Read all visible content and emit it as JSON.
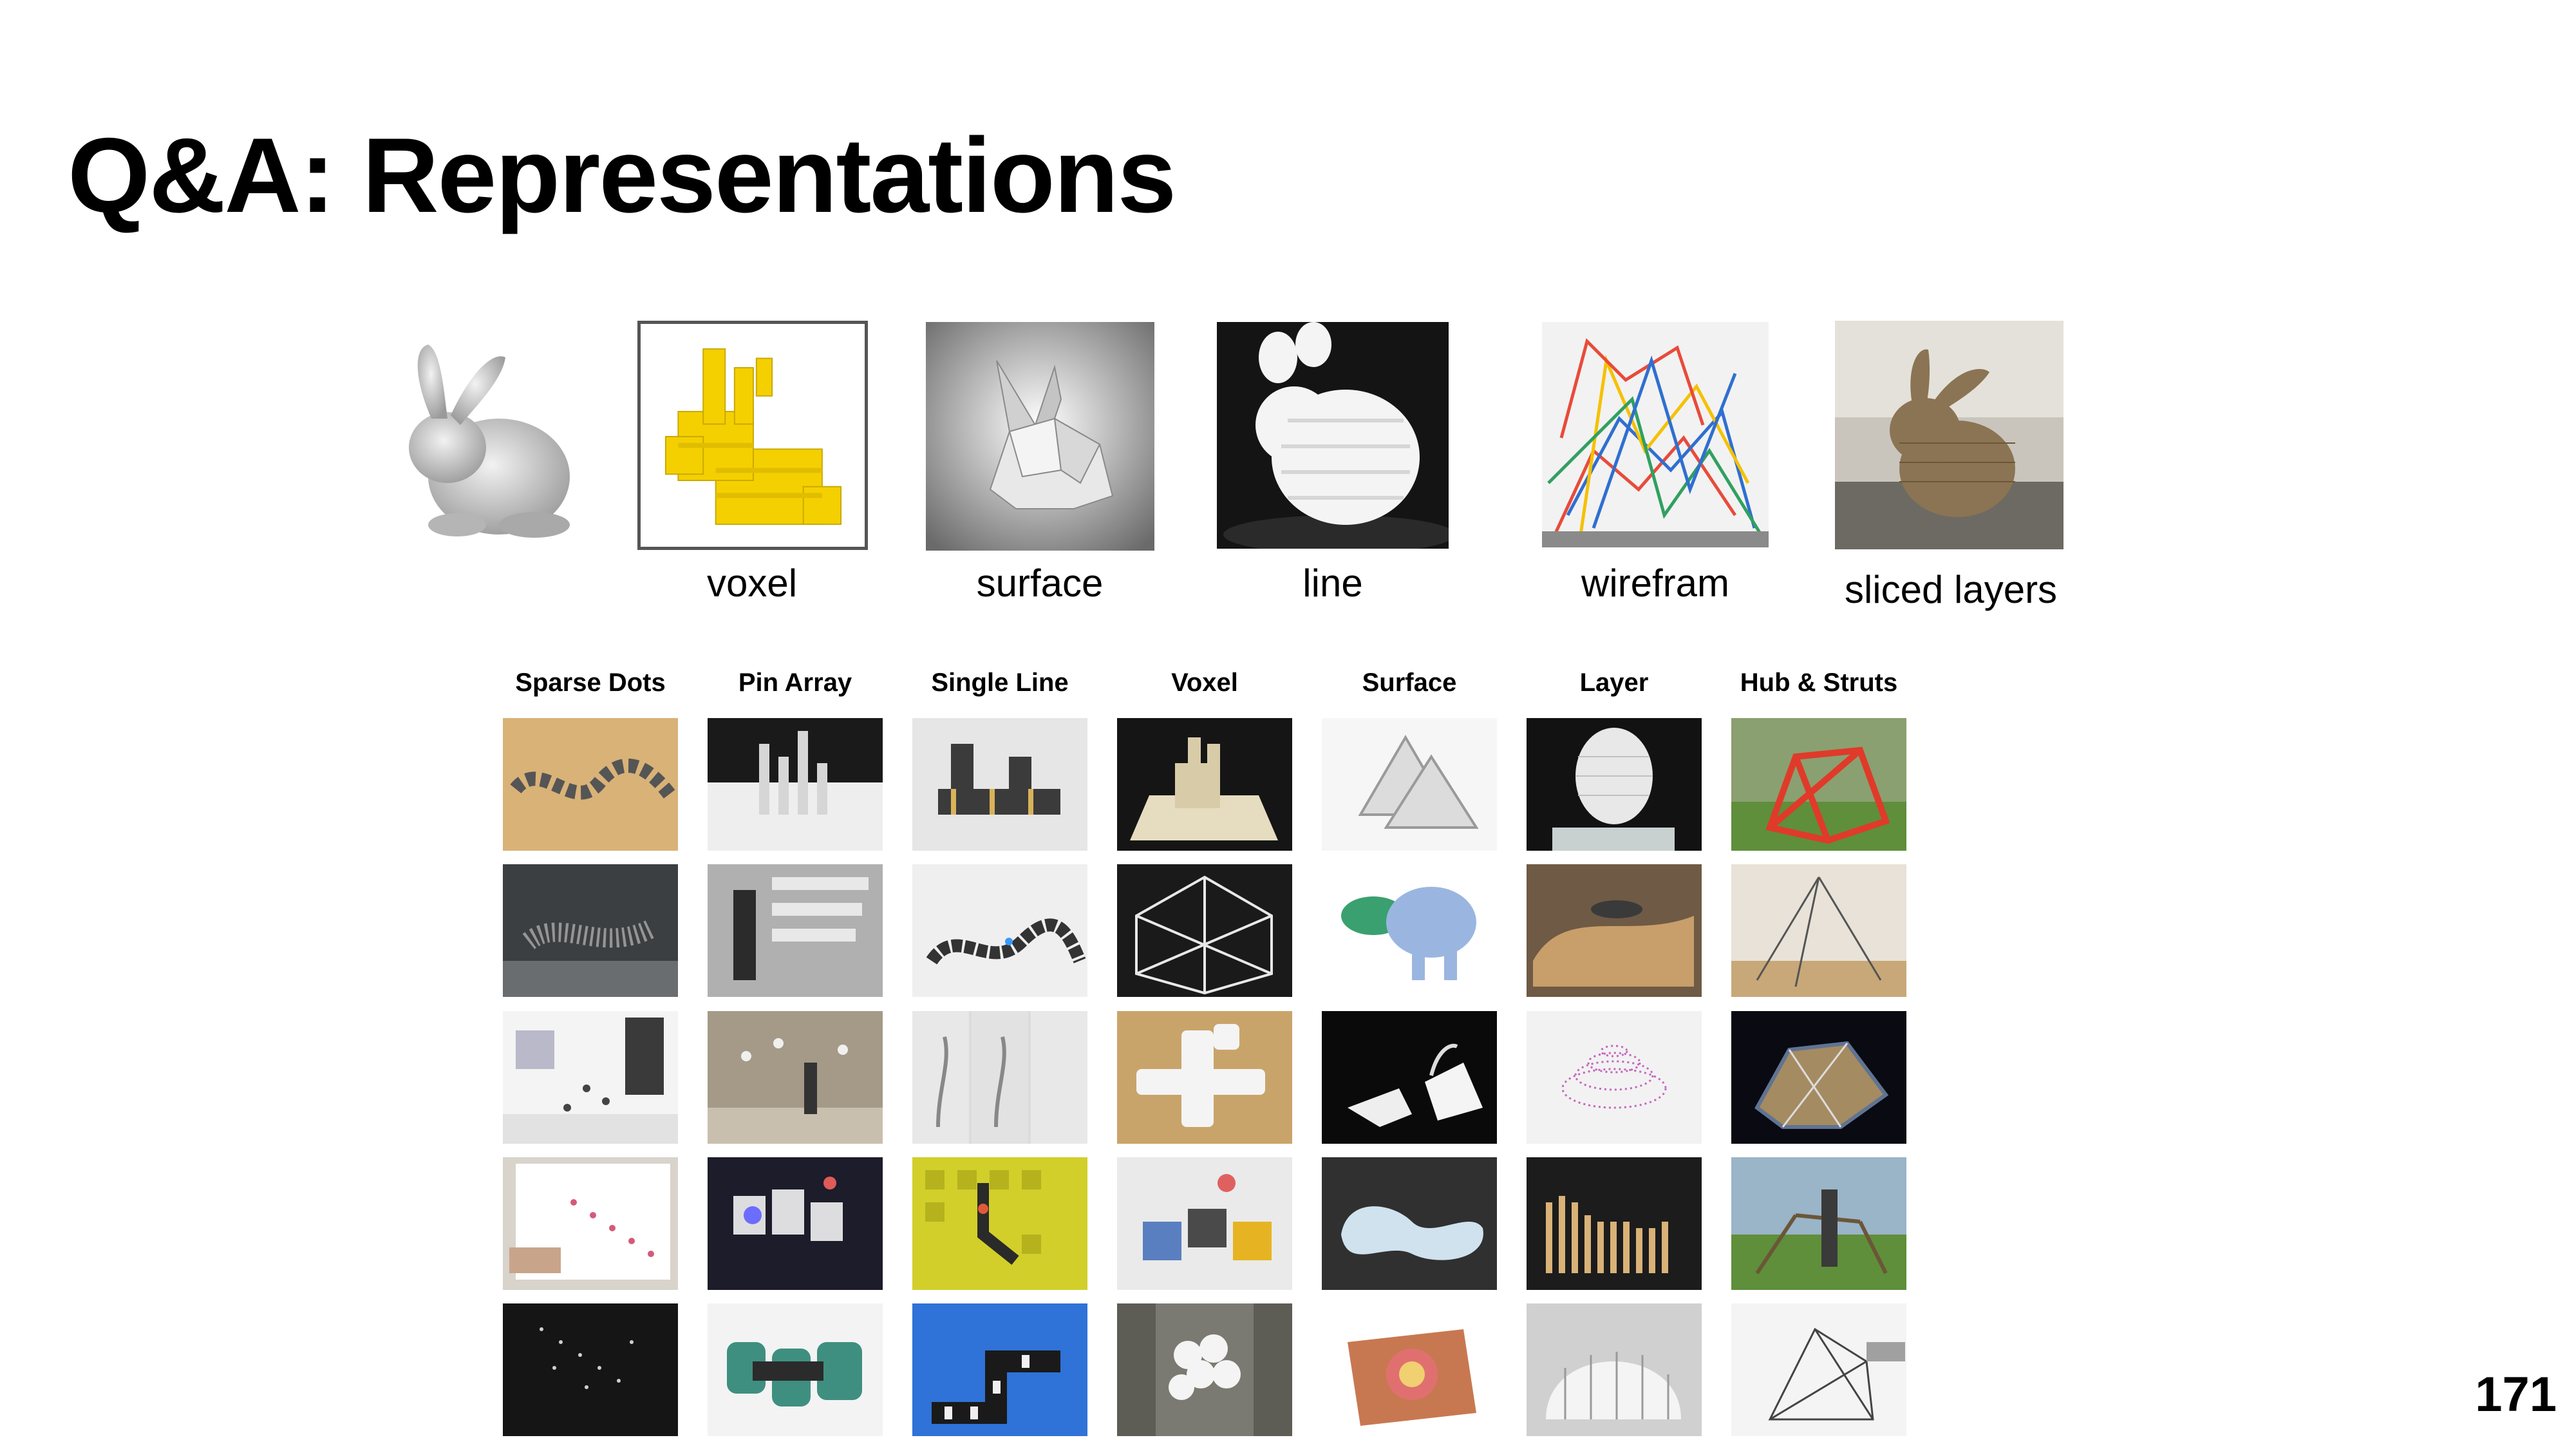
{
  "slide": {
    "title": "Q&A: Representations",
    "page_number": "171"
  },
  "bunnies": {
    "captions": [
      "voxel",
      "surface",
      "line",
      "wirefram",
      "sliced layers"
    ]
  },
  "grid": {
    "headers": [
      "Sparse Dots",
      "Pin Array",
      "Single Line",
      "Voxel",
      "Surface",
      "Layer",
      "Hub & Struts"
    ]
  },
  "palette": {
    "voxel_yellow": "#f5d000",
    "wood": "#d9b278",
    "dark": "#1a1a1a",
    "grass": "#5f8f3a"
  }
}
